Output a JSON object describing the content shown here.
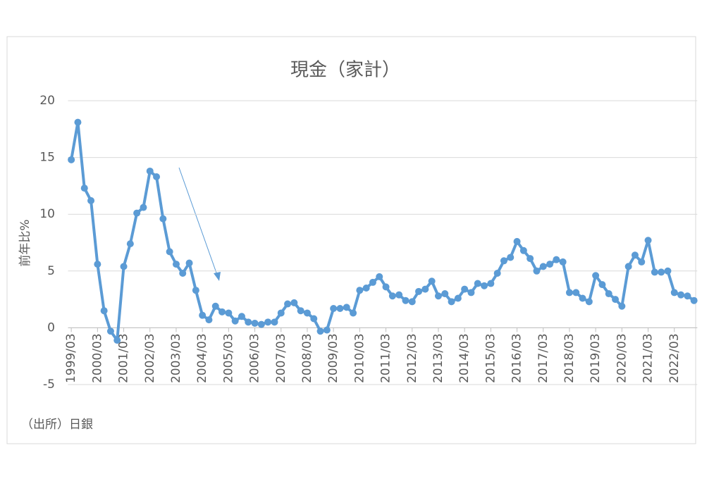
{
  "chart_data": {
    "type": "line",
    "title": "現金（家計）",
    "y_label": "前年比%",
    "source": "（出所）日銀",
    "categories": [
      "1999/03",
      null,
      null,
      null,
      "2000/03",
      null,
      null,
      null,
      "2001/03",
      null,
      null,
      null,
      "2002/03",
      null,
      null,
      null,
      "2003/03",
      null,
      null,
      null,
      "2004/03",
      null,
      null,
      null,
      "2005/03",
      null,
      null,
      null,
      "2006/03",
      null,
      null,
      null,
      "2007/03",
      null,
      null,
      null,
      "2008/03",
      null,
      null,
      null,
      "2009/03",
      null,
      null,
      null,
      "2010/03",
      null,
      null,
      null,
      "2011/03",
      null,
      null,
      null,
      "2012/03",
      null,
      null,
      null,
      "2013/03",
      null,
      null,
      null,
      "2014/03",
      null,
      null,
      null,
      "2015/03",
      null,
      null,
      null,
      "2016/03",
      null,
      null,
      null,
      "2017/03",
      null,
      null,
      null,
      "2018/03",
      null,
      null,
      null,
      "2019/03",
      null,
      null,
      null,
      "2020/03",
      null,
      null,
      null,
      "2021/03",
      null,
      null,
      null,
      "2022/03",
      null,
      null,
      null
    ],
    "values": [
      14.8,
      18.1,
      12.3,
      11.2,
      5.6,
      1.5,
      -0.3,
      -1.1,
      5.4,
      7.4,
      10.1,
      10.6,
      13.8,
      13.3,
      9.6,
      6.7,
      5.6,
      4.8,
      5.7,
      3.3,
      1.1,
      0.7,
      1.9,
      1.4,
      1.3,
      0.6,
      1.0,
      0.5,
      0.4,
      0.3,
      0.5,
      0.5,
      1.3,
      2.1,
      2.2,
      1.5,
      1.3,
      0.8,
      -0.3,
      -0.2,
      1.7,
      1.7,
      1.8,
      1.3,
      3.3,
      3.5,
      4.0,
      4.5,
      3.6,
      2.8,
      2.9,
      2.4,
      2.3,
      3.2,
      3.4,
      4.1,
      2.8,
      3.0,
      2.3,
      2.6,
      3.4,
      3.1,
      3.9,
      3.7,
      3.9,
      4.8,
      5.9,
      6.2,
      7.6,
      6.8,
      6.1,
      5.0,
      5.4,
      5.6,
      6.0,
      5.8,
      3.1,
      3.1,
      2.6,
      2.3,
      4.6,
      3.8,
      3.0,
      2.5,
      1.9,
      5.4,
      6.4,
      5.8,
      7.7,
      4.9,
      4.9,
      5.0,
      3.1,
      2.9,
      2.8,
      2.4
    ],
    "color": "#5b9bd5",
    "ylim": [
      -5,
      20
    ],
    "yticks": [
      -5,
      0,
      5,
      10,
      15,
      20
    ],
    "grid": true
  }
}
